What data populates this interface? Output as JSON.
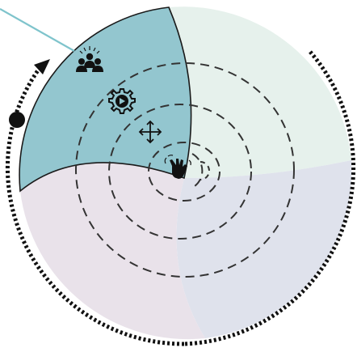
{
  "diagram": {
    "sectors": [
      {
        "id": "top-left",
        "fill": "#93c6cf",
        "stroke": "#1a1a1a",
        "highlighted": true
      },
      {
        "id": "top-right",
        "fill": "#e6f1ec"
      },
      {
        "id": "bottom-right",
        "fill": "#dfe2ec"
      },
      {
        "id": "bottom-left",
        "fill": "#e9e2ea"
      }
    ],
    "rings_count": 4,
    "connector_line_color": "#7fc4cc",
    "arc_color": "#111111",
    "icons": [
      "people-icon",
      "gear-play-icon",
      "move-arrows-icon",
      "waving-hand-icon"
    ]
  }
}
